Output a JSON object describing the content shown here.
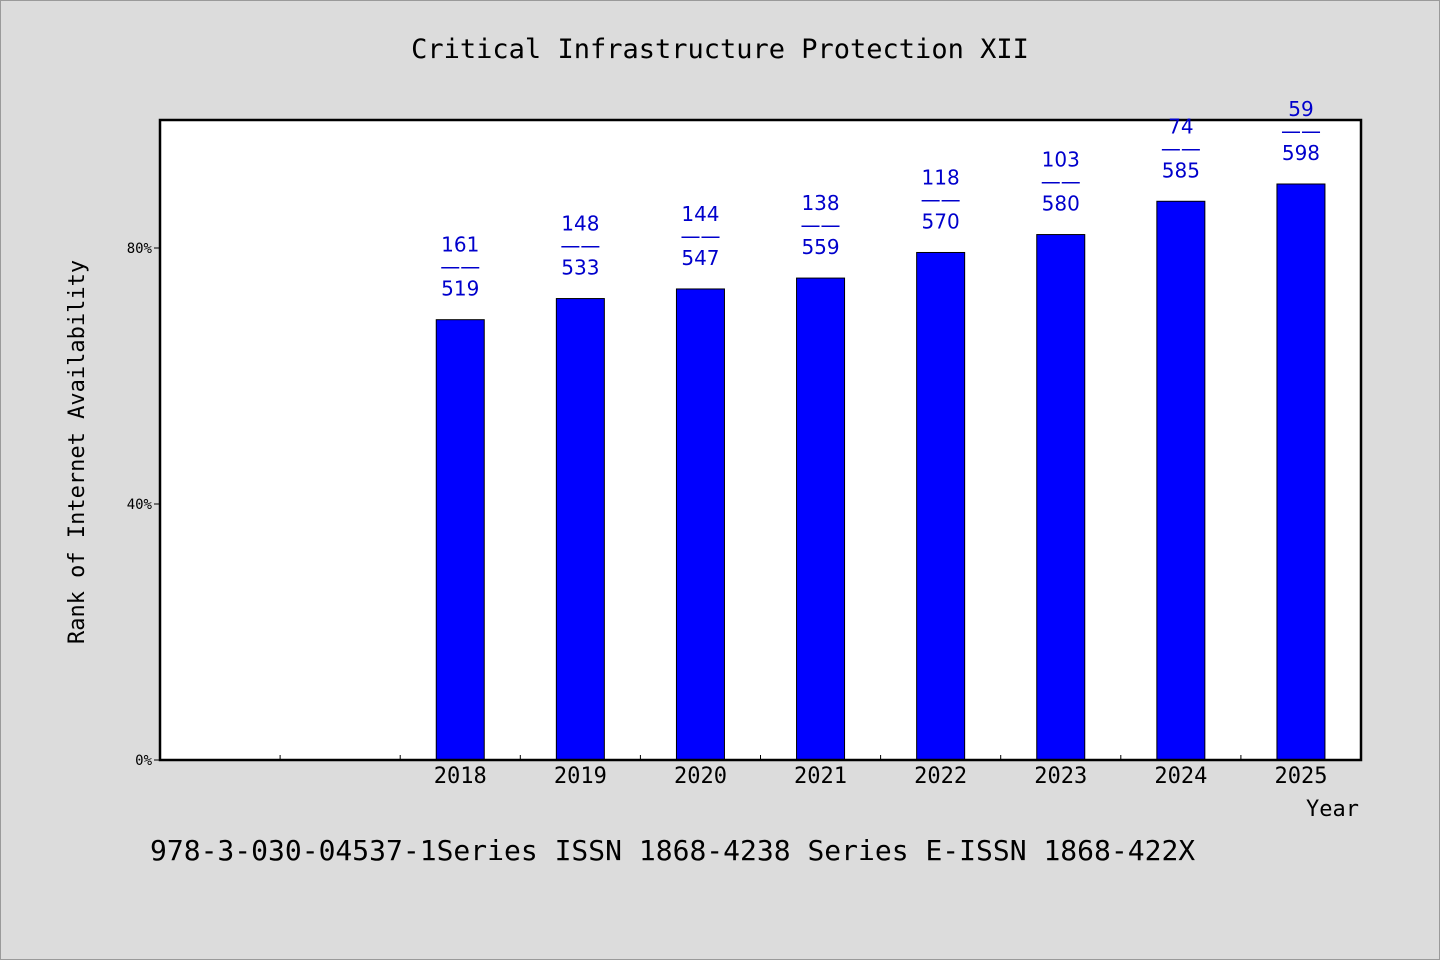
{
  "colors": {
    "bar": "#0000ff",
    "label": "#0000cc",
    "background": "#dcdcdc",
    "plot": "#ffffff"
  },
  "chart_data": {
    "type": "bar",
    "title": "Critical Infrastructure Protection XII",
    "xlabel": "Year",
    "ylabel": "Rank of Internet Availability",
    "categories": [
      "",
      "",
      "2018",
      "2019",
      "2020",
      "2021",
      "2022",
      "2023",
      "2024",
      "2025"
    ],
    "values": [
      null,
      null,
      68.8,
      72.1,
      73.6,
      75.3,
      79.3,
      82.1,
      87.3,
      90.0
    ],
    "labels_top": [
      "",
      "",
      "161",
      "148",
      "144",
      "138",
      "118",
      "103",
      "74",
      "59"
    ],
    "labels_bottom": [
      "",
      "",
      "519",
      "533",
      "547",
      "559",
      "570",
      "580",
      "585",
      "598"
    ],
    "label_separator": "——",
    "ylim": [
      0,
      100
    ],
    "yticks": [
      {
        "value": 0,
        "label": "0%"
      },
      {
        "value": 40,
        "label": "40%"
      },
      {
        "value": 80,
        "label": "80%"
      }
    ],
    "grid": false,
    "legend": "none"
  },
  "footer": {
    "text": "978-3-030-04537-1Series ISSN 1868-4238 Series E-ISSN 1868-422X"
  }
}
